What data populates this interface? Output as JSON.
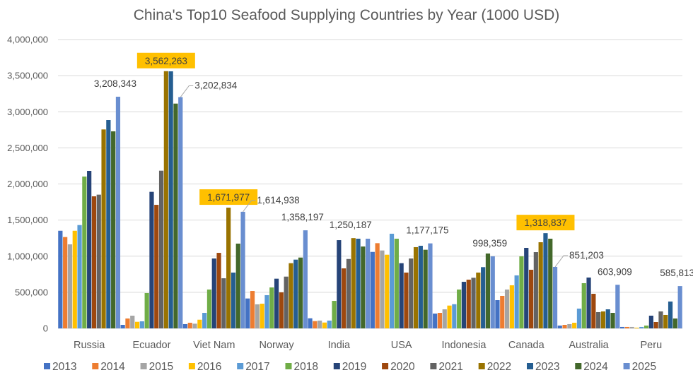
{
  "chart_data": {
    "type": "bar",
    "title": "China's Top10 Seafood Supplying Countries by Year (1000 USD)",
    "xlabel": "",
    "ylabel": "",
    "ylim": [
      0,
      4000000
    ],
    "yticks": [
      0,
      500000,
      1000000,
      1500000,
      2000000,
      2500000,
      3000000,
      3500000,
      4000000
    ],
    "ytick_labels": [
      "0",
      "500,000",
      "1,000,000",
      "1,500,000",
      "2,000,000",
      "2,500,000",
      "3,000,000",
      "3,500,000",
      "4,000,000"
    ],
    "grid": true,
    "legend_position": "bottom",
    "categories": [
      "Russia",
      "Ecuador",
      "Viet Nam",
      "Norway",
      "India",
      "USA",
      "Indonesia",
      "Canada",
      "Australia",
      "Peru"
    ],
    "series": [
      {
        "name": "2013",
        "color": "#4472c4",
        "values": [
          1352000,
          49000,
          59000,
          414000,
          140000,
          1059000,
          205000,
          391000,
          39000,
          20000
        ]
      },
      {
        "name": "2014",
        "color": "#ed7d31",
        "values": [
          1265000,
          137000,
          78000,
          518000,
          101000,
          1180000,
          215000,
          450000,
          49000,
          20000
        ]
      },
      {
        "name": "2015",
        "color": "#a5a5a5",
        "values": [
          1164000,
          176000,
          65000,
          333000,
          108000,
          1079000,
          264000,
          538000,
          59000,
          20000
        ]
      },
      {
        "name": "2016",
        "color": "#ffc000",
        "values": [
          1352000,
          91000,
          120000,
          342000,
          81000,
          1020000,
          316000,
          597000,
          78000,
          10000
        ]
      },
      {
        "name": "2017",
        "color": "#5b9bd5",
        "values": [
          1431000,
          98000,
          215000,
          460000,
          108000,
          1311000,
          335000,
          734000,
          274000,
          20000
        ]
      },
      {
        "name": "2018",
        "color": "#70ad47",
        "values": [
          2103000,
          489000,
          538000,
          567000,
          381000,
          1242000,
          538000,
          998000,
          626000,
          39000
        ]
      },
      {
        "name": "2019",
        "color": "#264478",
        "values": [
          2181000,
          1891000,
          968000,
          688000,
          1222000,
          903000,
          645000,
          1115000,
          704000,
          176000
        ]
      },
      {
        "name": "2020",
        "color": "#9e480e",
        "values": [
          1829000,
          1711000,
          1046000,
          499000,
          831000,
          773000,
          675000,
          812000,
          479000,
          88000
        ]
      },
      {
        "name": "2021",
        "color": "#636363",
        "values": [
          1852000,
          2184000,
          694000,
          717000,
          961000,
          968000,
          701000,
          1056000,
          225000,
          235000
        ]
      },
      {
        "name": "2022",
        "color": "#997300",
        "values": [
          2755000,
          3562263,
          1671977,
          903000,
          1250187,
          1125000,
          773000,
          1193000,
          235000,
          186000
        ]
      },
      {
        "name": "2023",
        "color": "#255e91",
        "values": [
          2885000,
          3560000,
          773000,
          952000,
          1242000,
          1144000,
          848000,
          1318837,
          264000,
          372000
        ]
      },
      {
        "name": "2024",
        "color": "#43682b",
        "values": [
          2729000,
          3113000,
          1174000,
          981000,
          1134000,
          1089000,
          1037000,
          1242000,
          215000,
          137000
        ]
      },
      {
        "name": "2025",
        "color": "#698ed0",
        "values": [
          3208343,
          3202834,
          1614938,
          1358197,
          1242000,
          1177175,
          998359,
          851203,
          603909,
          585813
        ]
      }
    ],
    "annotations": [
      {
        "category": "Russia",
        "series": "2025",
        "text": "3,208,343",
        "highlight": false,
        "leader": false
      },
      {
        "category": "Ecuador",
        "series": "2022",
        "text": "3,562,263",
        "highlight": true,
        "leader": false
      },
      {
        "category": "Ecuador",
        "series": "2025",
        "text": "3,202,834",
        "highlight": false,
        "leader": true
      },
      {
        "category": "Viet Nam",
        "series": "2022",
        "text": "1,671,977",
        "highlight": true,
        "leader": false
      },
      {
        "category": "Viet Nam",
        "series": "2025",
        "text": "1,614,938",
        "highlight": false,
        "leader": true
      },
      {
        "category": "Norway",
        "series": "2025",
        "text": "1,358,197",
        "highlight": false,
        "leader": false
      },
      {
        "category": "India",
        "series": "2022",
        "text": "1,250,187",
        "highlight": false,
        "leader": false
      },
      {
        "category": "USA",
        "series": "2025",
        "text": "1,177,175",
        "highlight": false,
        "leader": false
      },
      {
        "category": "Indonesia",
        "series": "2025",
        "text": "998,359",
        "highlight": false,
        "leader": false
      },
      {
        "category": "Canada",
        "series": "2023",
        "text": "1,318,837",
        "highlight": true,
        "leader": false
      },
      {
        "category": "Canada",
        "series": "2025",
        "text": "851,203",
        "highlight": false,
        "leader": true
      },
      {
        "category": "Australia",
        "series": "2025",
        "text": "603,909",
        "highlight": false,
        "leader": false
      },
      {
        "category": "Peru",
        "series": "2025",
        "text": "585,813",
        "highlight": false,
        "leader": false
      }
    ],
    "highlight_color": "#ffc000"
  }
}
